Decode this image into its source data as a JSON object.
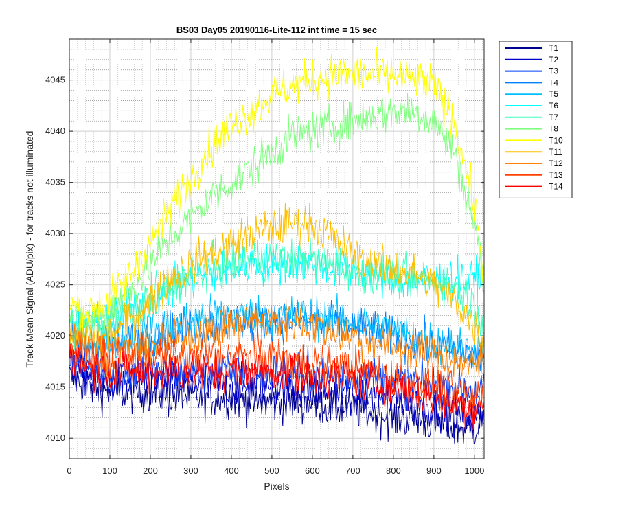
{
  "chart_data": {
    "type": "line",
    "title": "BS03 Day05 20190116-Lite-112 int time = 15 sec",
    "xlabel": "Pixels",
    "ylabel": "Track Mean Signal (ADU/pix) - for tracks not illuminated",
    "xlim": [
      0,
      1024
    ],
    "ylim": [
      4008,
      4049
    ],
    "x_ticks": [
      0,
      100,
      200,
      300,
      400,
      500,
      600,
      700,
      800,
      900,
      1000
    ],
    "y_ticks": [
      4010,
      4015,
      4020,
      4025,
      4030,
      4035,
      4040,
      4045
    ],
    "grid": "major and minor, dotted",
    "legend_position": "outside-right",
    "x": [
      0,
      50,
      100,
      150,
      200,
      250,
      300,
      350,
      400,
      450,
      500,
      550,
      600,
      650,
      700,
      750,
      800,
      850,
      900,
      950,
      1000,
      1024
    ],
    "series": [
      {
        "name": "T1",
        "color": "#00008f",
        "values": [
          4016,
          4015,
          4014.5,
          4014.5,
          4014.5,
          4014,
          4014,
          4014,
          4014,
          4013.5,
          4013.5,
          4013.5,
          4013.5,
          4013,
          4013,
          4012.5,
          4012,
          4012,
          4011.5,
          4011,
          4011,
          4012
        ]
      },
      {
        "name": "T2",
        "color": "#0000c8",
        "values": [
          4017,
          4016,
          4015.5,
          4015.5,
          4015.5,
          4015.5,
          4015.5,
          4015.5,
          4015,
          4015,
          4015,
          4015,
          4015,
          4014.5,
          4014.5,
          4014,
          4014,
          4013.5,
          4013,
          4012.5,
          4012,
          4012.5
        ]
      },
      {
        "name": "T3",
        "color": "#0040ff",
        "values": [
          4018,
          4017,
          4016.5,
          4016.5,
          4016.5,
          4016.5,
          4016.5,
          4016.5,
          4016.5,
          4016.5,
          4016.5,
          4016.5,
          4016.5,
          4016,
          4016,
          4016,
          4015.5,
          4015.5,
          4015,
          4015,
          4014.5,
          4015
        ]
      },
      {
        "name": "T4",
        "color": "#0080ff",
        "values": [
          4020,
          4019,
          4019,
          4019.5,
          4020,
          4020.5,
          4021,
          4021,
          4021.5,
          4021.5,
          4021.5,
          4021.5,
          4021.5,
          4021,
          4021,
          4020.5,
          4020,
          4019.5,
          4019,
          4018.5,
          4018,
          4018
        ]
      },
      {
        "name": "T5",
        "color": "#00bfff",
        "values": [
          4020,
          4019.5,
          4019.5,
          4020,
          4020.5,
          4021,
          4021.5,
          4022,
          4022,
          4022,
          4022,
          4022,
          4022,
          4021.5,
          4021.5,
          4021,
          4020.5,
          4020,
          4019.5,
          4019,
          4018.5,
          4019
        ]
      },
      {
        "name": "T6",
        "color": "#00ffff",
        "values": [
          4021,
          4021,
          4021.5,
          4022.5,
          4023.5,
          4024.5,
          4025.5,
          4026,
          4026.5,
          4027,
          4027,
          4027,
          4027,
          4026.5,
          4026.5,
          4026,
          4025.5,
          4025.5,
          4025.5,
          4025.5,
          4025.5,
          4026
        ]
      },
      {
        "name": "T7",
        "color": "#40ffbf",
        "values": [
          4021,
          4021,
          4021.5,
          4022.5,
          4024,
          4025,
          4026,
          4026.5,
          4027,
          4027.5,
          4027.5,
          4027.5,
          4027.5,
          4027,
          4026.5,
          4026,
          4026,
          4025.5,
          4025.5,
          4025,
          4023,
          4021
        ]
      },
      {
        "name": "T8",
        "color": "#80ff80",
        "values": [
          4021.5,
          4021.5,
          4022.5,
          4024.5,
          4027,
          4029.5,
          4031.5,
          4033.5,
          4035,
          4036.5,
          4038,
          4039.5,
          4040,
          4040.5,
          4041,
          4041.5,
          4042,
          4042,
          4041,
          4038,
          4031,
          4025
        ]
      },
      {
        "name": "T10",
        "color": "#ffff00",
        "values": [
          4023,
          4022.5,
          4023.5,
          4026,
          4029,
          4032.5,
          4035.5,
          4038.5,
          4040.5,
          4042,
          4043.5,
          4044.5,
          4045,
          4045.5,
          4045.5,
          4045.5,
          4045.5,
          4045,
          4044.5,
          4041,
          4033,
          4026
        ]
      },
      {
        "name": "T11",
        "color": "#ffbf00",
        "values": [
          4020,
          4019.5,
          4020,
          4021.5,
          4023.5,
          4025.5,
          4027,
          4028,
          4029,
          4030,
          4030.5,
          4031,
          4031,
          4029.5,
          4028,
          4027,
          4026.5,
          4026,
          4025,
          4023.5,
          4021,
          4019.5
        ]
      },
      {
        "name": "T12",
        "color": "#ff8000",
        "values": [
          4020,
          4019,
          4018.5,
          4018.5,
          4019,
          4019.5,
          4020,
          4020.5,
          4021,
          4021.5,
          4021.5,
          4021.5,
          4021,
          4020.5,
          4020,
          4019.5,
          4019,
          4018.5,
          4018,
          4017.5,
          4017,
          4017.5
        ]
      },
      {
        "name": "T13",
        "color": "#ff4000",
        "values": [
          4019,
          4018,
          4017.5,
          4017.5,
          4018,
          4018,
          4018,
          4018,
          4018,
          4018,
          4018,
          4017.5,
          4017.5,
          4017,
          4017,
          4016.5,
          4016,
          4015.5,
          4015,
          4014.5,
          4014,
          4014.5
        ]
      },
      {
        "name": "T14",
        "color": "#ff0000",
        "values": [
          4018,
          4017,
          4016.5,
          4016.5,
          4016.5,
          4016.5,
          4016.5,
          4016.5,
          4016.5,
          4016.5,
          4016.5,
          4016.5,
          4016,
          4016,
          4016,
          4015.5,
          4015,
          4014.5,
          4014,
          4013.5,
          4013,
          4013.5
        ]
      }
    ]
  }
}
